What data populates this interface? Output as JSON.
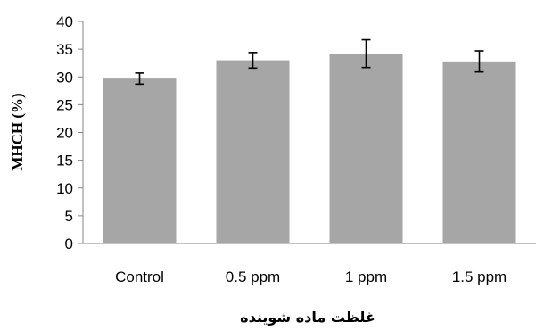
{
  "chart_data": {
    "type": "bar",
    "categories": [
      "Control",
      "0.5 ppm",
      "1 ppm",
      "1.5 ppm"
    ],
    "values": [
      29.7,
      33.0,
      34.2,
      32.8
    ],
    "errors": [
      1.0,
      1.4,
      2.5,
      1.9
    ],
    "xlabel": "غلظت ماده شوینده",
    "ylabel": "MHCH (%)",
    "ylim": [
      0,
      40
    ],
    "yticks": [
      0,
      5,
      10,
      15,
      20,
      25,
      30,
      35,
      40
    ],
    "grid": false,
    "bar_color": "#a6a6a6",
    "axis_color": "#868686"
  }
}
